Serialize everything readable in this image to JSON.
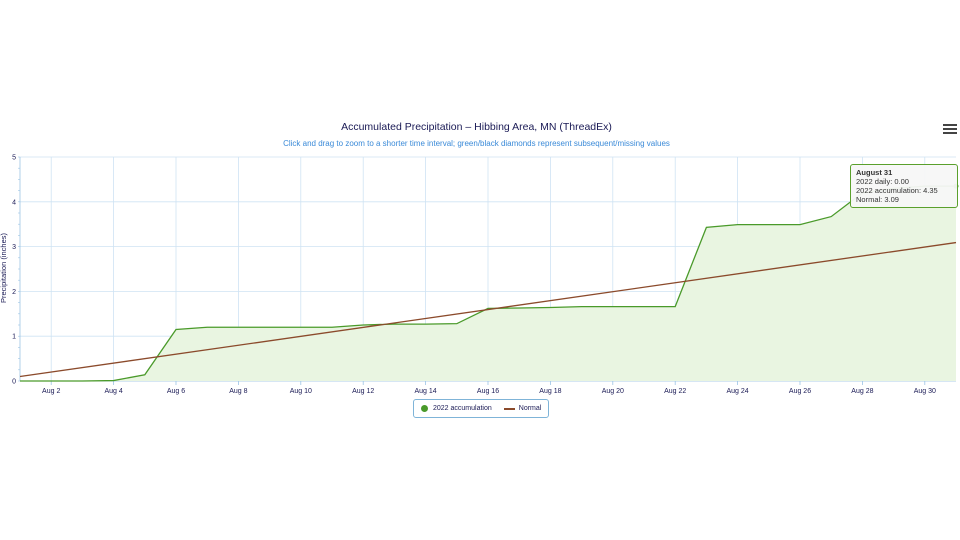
{
  "chart_data": {
    "type": "line",
    "title": "Accumulated Precipitation – Hibbing Area, MN (ThreadEx)",
    "subtitle": "Click and drag to zoom to a shorter time interval; green/black diamonds represent subsequent/missing values",
    "ylabel": "Precipitation (inches)",
    "xlabel": "",
    "xlim": [
      1,
      31
    ],
    "ylim": [
      0,
      5
    ],
    "yticks": [
      "0",
      "1",
      "2",
      "3",
      "4",
      "5"
    ],
    "xticks": [
      "Aug 2",
      "Aug 4",
      "Aug 6",
      "Aug 8",
      "Aug 10",
      "Aug 12",
      "Aug 14",
      "Aug 16",
      "Aug 18",
      "Aug 20",
      "Aug 22",
      "Aug 24",
      "Aug 26",
      "Aug 28",
      "Aug 30"
    ],
    "grid": true,
    "legend_position": "bottom-center",
    "series": [
      {
        "name": "2022 accumulation",
        "color": "#4a9a2a",
        "fill": "#e9f5e1",
        "x": [
          1,
          2,
          3,
          4,
          5,
          6,
          7,
          8,
          9,
          10,
          11,
          12,
          13,
          14,
          15,
          16,
          17,
          18,
          19,
          20,
          21,
          22,
          23,
          24,
          25,
          26,
          27,
          28,
          29,
          30,
          31
        ],
        "values": [
          0.0,
          0.0,
          0.0,
          0.01,
          0.14,
          1.15,
          1.2,
          1.2,
          1.2,
          1.2,
          1.2,
          1.25,
          1.27,
          1.27,
          1.28,
          1.62,
          1.63,
          1.64,
          1.66,
          1.66,
          1.66,
          1.66,
          3.43,
          3.49,
          3.49,
          3.49,
          3.67,
          4.2,
          4.3,
          4.35,
          4.35
        ]
      },
      {
        "name": "Normal",
        "color": "#8b4a2b",
        "x": [
          1,
          31
        ],
        "values": [
          0.1,
          3.09
        ]
      }
    ]
  },
  "legend": {
    "items": [
      {
        "label": "2022 accumulation",
        "color": "#4a9a2a"
      },
      {
        "label": "Normal",
        "color": "#8b4a2b"
      }
    ]
  },
  "tooltip": {
    "title": "August 31",
    "daily": "2022 daily: 0.00",
    "accumulation": "2022 accumulation: 4.35",
    "normal": "Normal: 3.09"
  },
  "menu": {
    "icon": "hamburger-menu-icon"
  }
}
